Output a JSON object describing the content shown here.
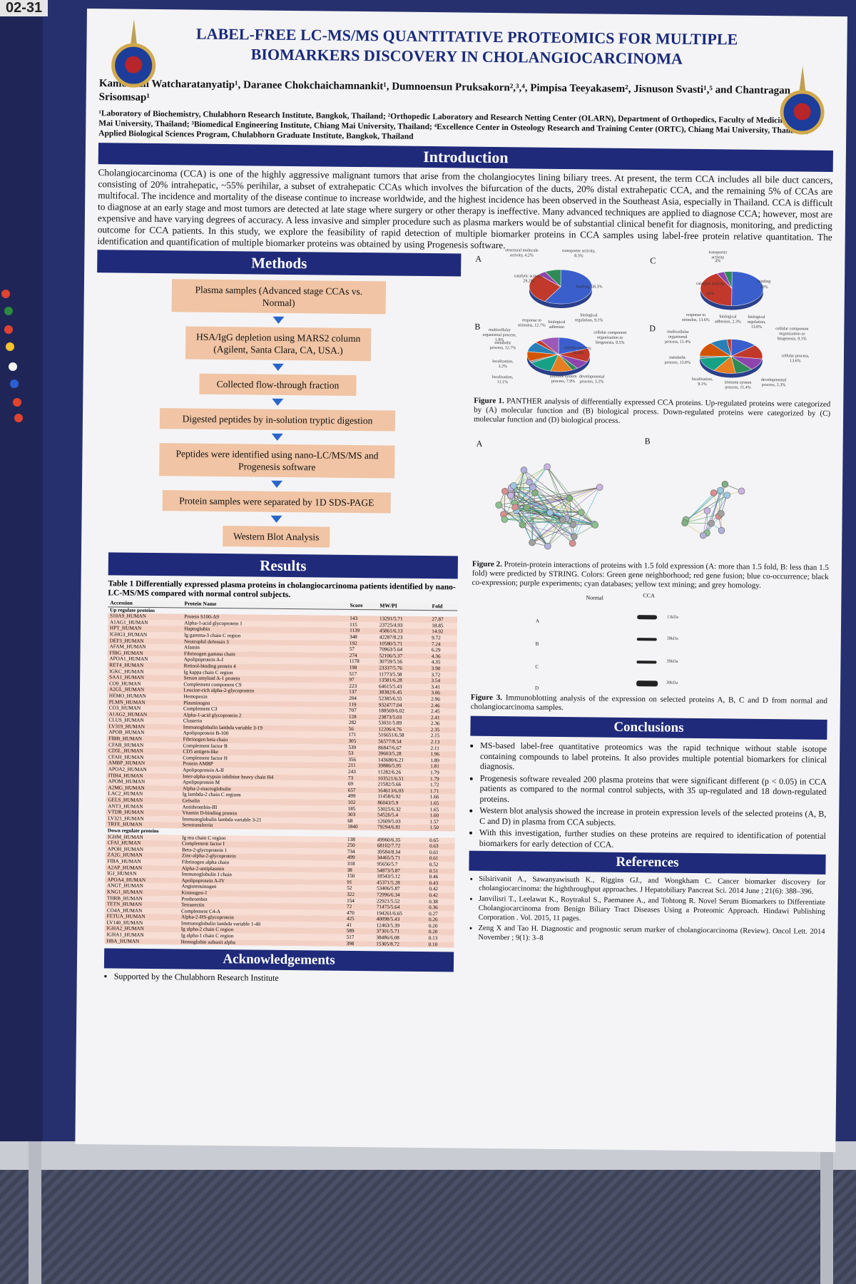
{
  "scene": {
    "board_tag": "02-31",
    "colors": {
      "board": "#27306e",
      "banner": "#1f2a7a",
      "flow_box": "#f0c4a4",
      "arrow": "#2a66c9",
      "table_row": "#f3d0c4"
    }
  },
  "poster": {
    "title": "LABEL-FREE LC-MS/MS QUANTITATIVE PROTEOMICS FOR MULTIPLE BIOMARKERS DISCOVERY IN CHOLANGIOCARCINOMA",
    "authors": "Kamolwan Watcharatanyatip¹, Daranee Chokchaichamnankit¹, Dumnoensun Pruksakorn²,³,⁴, Pimpisa Teeyakasem², Jisnuson Svasti¹,⁵ and Chantragan Srisomsap¹",
    "affiliations": "¹Laboratory of Biochemistry, Chulabhorn Research Institute, Bangkok, Thailand; ²Orthopedic Laboratory and Research Netting Center (OLARN), Department of Orthopedics, Faculty of Medicine, Chiang Mai University, Thailand; ³Biomedical Engineering Institute, Chiang Mai University, Thailand; ⁴Excellence Center in Osteology Research and Training Center (ORTC), Chiang Mai University, Thailand⁵; Applied Biological Sciences Program, Chulabhorn Graduate Institute, Bangkok, Thailand",
    "introduction": {
      "heading": "Introduction",
      "text": "Cholangiocarcinoma (CCA) is one of the highly aggressive malignant tumors that arise from the cholangiocytes lining biliary trees. At present, the term CCA includes all bile duct cancers, consisting of 20% intrahepatic, ~55% perihilar, a subset of extrahepatic CCAs which involves the bifurcation of the ducts, 20% distal extrahepatic CCA, and the remaining 5% of CCAs are multifocal. The incidence and mortality of the disease continue to increase worldwide, and the highest incidence has been observed in the Southeast Asia, especially in Thailand. CCA is difficult to diagnose at an early stage and most tumors are detected at late stage where surgery or other therapy is ineffective. Many advanced techniques are applied to diagnose CCA; however, most are expensive and have varying degrees of accuracy. A less invasive and simpler procedure such as plasma markers would be of substantial clinical benefit for diagnosis, monitoring, and predicting outcome for CCA patients. In this study, we explore the feasibility of rapid detection of multiple biomarker proteins in CCA samples using label-free protein relative quantitation. The identification and quantification of multiple biomarker proteins was obtained by using Progenesis software."
    },
    "methods": {
      "heading": "Methods",
      "steps": [
        "Plasma samples (Advanced stage CCAs vs. Normal)",
        "HSA/IgG depletion using MARS2 column (Agilent, Santa Clara, CA, USA.)",
        "Collected flow-through fraction",
        "Digested peptides by in-solution tryptic digestion",
        "Peptides were identified using nano-LC/MS/MS and Progenesis software",
        "Protein samples were separated by 1D SDS-PAGE",
        "Western Blot Analysis"
      ]
    },
    "results": {
      "heading": "Results",
      "table_caption": "Table 1  Differentially expressed plasma proteins in cholangiocarcinoma patients identified by nano-LC-MS/MS compared with normal control subjects.",
      "columns": [
        "Accession",
        "Protein Name",
        "Score",
        "MW/PI",
        "Fold"
      ],
      "up_label": "Up regulate proteins",
      "down_label": "Down regulate proteins",
      "up_rows": [
        [
          "S10A9_HUMAN",
          "Protein S100-A9",
          "143",
          "13291/5.71",
          "27.87"
        ],
        [
          "A1AG1_HUMAN",
          "Alpha-1-acid glycoprotein 1",
          "115",
          "23725/4.93",
          "18.85"
        ],
        [
          "HPT_HUMAN",
          "Haptoglobin",
          "1139",
          "45861/6.13",
          "14.92"
        ],
        [
          "IGHG3_HUMAN",
          "Ig gamma-3 chain C region",
          "348",
          "42287/8.23",
          "9.72"
        ],
        [
          "DEF3_HUMAN",
          "Neutrophil defensin 3",
          "192",
          "10580/5.71",
          "7.24"
        ],
        [
          "AFAM_HUMAN",
          "Afamin",
          "57",
          "70963/5.64",
          "6.29"
        ],
        [
          "FIBG_HUMAN",
          "Fibrinogen gamma chain",
          "274",
          "52106/5.37",
          "4.36"
        ],
        [
          "APOA1_HUMAN",
          "Apolipoprotein A-I",
          "1178",
          "30759/5.56",
          "4.35"
        ],
        [
          "RET4_HUMAN",
          "Retinol-binding protein 4",
          "198",
          "23337/5.76",
          "3.90"
        ],
        [
          "IGKC_HUMAN",
          "Ig kappa chain C region",
          "517",
          "11773/5.58",
          "3.72"
        ],
        [
          "SAA1_HUMAN",
          "Serum amyloid A-1 protein",
          "97",
          "13581/6.28",
          "3.54"
        ],
        [
          "CO9_HUMAN",
          "Complement component C9",
          "223",
          "64615/5.43",
          "3.41"
        ],
        [
          "A2GL_HUMAN",
          "Leucine-rich alpha-2-glycoprotein",
          "137",
          "38382/6.45",
          "3.06"
        ],
        [
          "HEMO_HUMAN",
          "Hemopexin",
          "204",
          "52385/6.55",
          "2.96"
        ],
        [
          "PLMN_HUMAN",
          "Plasminogen",
          "119",
          "93247/7.04",
          "2.46"
        ],
        [
          "CO3_HUMAN",
          "Complement C3",
          "707",
          "188569/6.02",
          "2.45"
        ],
        [
          "A1AG2_HUMAN",
          "Alpha-1-acid glycoprotein 2",
          "128",
          "23873/5.03",
          "2.41"
        ],
        [
          "CLUS_HUMAN",
          "Clusterin",
          "282",
          "53031/5.89",
          "2.36"
        ],
        [
          "LV319_HUMAN",
          "Immunoglobulin lambda variable 3-19",
          "56",
          "12206/4.76",
          "2.35"
        ],
        [
          "APOB_HUMAN",
          "Apolipoprotein B-100",
          "171",
          "516651/6.58",
          "2.15"
        ],
        [
          "FIBB_HUMAN",
          "Fibrinogen beta chain",
          "305",
          "56577/8.54",
          "2.13"
        ],
        [
          "CFAB_HUMAN",
          "Complement factor B",
          "539",
          "86847/6.67",
          "2.11"
        ],
        [
          "CD5L_HUMAN",
          "CD5 antigen-like",
          "53",
          "39603/5.28",
          "1.96"
        ],
        [
          "CFAH_HUMAN",
          "Complement factor H",
          "356",
          "143680/6.21",
          "1.89"
        ],
        [
          "AMBP_HUMAN",
          "Protein AMBP",
          "211",
          "39886/5.95",
          "1.81"
        ],
        [
          "APOA2_HUMAN",
          "Apolipoprotein A-II",
          "243",
          "11282/6.26",
          "1.79"
        ],
        [
          "ITIH4_HUMAN",
          "Inter-alpha-trypsin inhibitor heavy chain H4",
          "73",
          "103521/6.51",
          "1.79"
        ],
        [
          "APOM_HUMAN",
          "Apolipoprotein M",
          "69",
          "21582/5.66",
          "1.72"
        ],
        [
          "A2MG_HUMAN",
          "Alpha-2-macroglobulin",
          "657",
          "164613/6.03",
          "1.71"
        ],
        [
          "LAC2_HUMAN",
          "Ig lambda-2 chain C regions",
          "499",
          "11458/6.92",
          "1.66"
        ],
        [
          "GELS_HUMAN",
          "Gelsolin",
          "102",
          "86043/5.9",
          "1.65"
        ],
        [
          "ANT3_HUMAN",
          "Antithrombin-III",
          "185",
          "53025/6.32",
          "1.65"
        ],
        [
          "VTDB_HUMAN",
          "Vitamin D-binding protein",
          "303",
          "54526/5.4",
          "1.60"
        ],
        [
          "LV321_HUMAN",
          "Immunoglobulin lambda variable 3-21",
          "68",
          "12609/5.03",
          "1.57"
        ],
        [
          "TRFE_HUMAN",
          "Serotransferrin",
          "1840",
          "79294/6.81",
          "1.50"
        ]
      ],
      "down_rows": [
        [
          "IGHM_HUMAN",
          "Ig mu chain C region",
          "138",
          "49960/6.35",
          "0.65"
        ],
        [
          "CFAI_HUMAN",
          "Complement factor I",
          "250",
          "68102/7.72",
          "0.63"
        ],
        [
          "APOH_HUMAN",
          "Beta-2-glycoprotein 1",
          "734",
          "39584/8.34",
          "0.61"
        ],
        [
          "ZA2G_HUMAN",
          "Zinc-alpha-2-glycoprotein",
          "499",
          "34465/5.71",
          "0.61"
        ],
        [
          "FIBA_HUMAN",
          "Fibrinogen alpha chain",
          "318",
          "95656/5.7",
          "0.52"
        ],
        [
          "A2AP_HUMAN",
          "Alpha-2-antiplasmin",
          "38",
          "54873/5.87",
          "0.51"
        ],
        [
          "IGJ_HUMAN",
          "Immunoglobulin J chain",
          "150",
          "18543/5.12",
          "0.46"
        ],
        [
          "APOA4_HUMAN",
          "Apolipoprotein A-IV",
          "91",
          "45371/5.28",
          "0.43"
        ],
        [
          "ANGT_HUMAN",
          "Angiotensinogen",
          "52",
          "53406/5.87",
          "0.42"
        ],
        [
          "KNG1_HUMAN",
          "Kininogen-1",
          "322",
          "72996/6.34",
          "0.42"
        ],
        [
          "THRB_HUMAN",
          "Prothrombin",
          "154",
          "22921/5.52",
          "0.38"
        ],
        [
          "TETN_HUMAN",
          "Tetranectin",
          "72",
          "71475/5.64",
          "0.36"
        ],
        [
          "CO4A_HUMAN",
          "Complement C4-A",
          "470",
          "194261/6.65",
          "0.27"
        ],
        [
          "FETUA_HUMAN",
          "Alpha-2-HS-glycoprotein",
          "425",
          "40098/5.43",
          "0.26"
        ],
        [
          "LV140_HUMAN",
          "Immunoglobulin lambda variable 1-40",
          "41",
          "12463/5.39",
          "0.20"
        ],
        [
          "IGHA2_HUMAN",
          "Ig alpha-2 chain C region",
          "589",
          "37301/5.71",
          "0.20"
        ],
        [
          "IGHA1_HUMAN",
          "Ig alpha-1 chain C region",
          "517",
          "38486/6.08",
          "0.13"
        ],
        [
          "HBA_HUMAN",
          "Hemoglobin subunit alpha",
          "398",
          "15305/8.72",
          "0.10"
        ]
      ]
    },
    "acknowledgements": {
      "heading": "Acknowledgements",
      "text": "Supported by the Chulabhorn Research Institute"
    },
    "figure1": {
      "panel_a": "A",
      "panel_b": "B",
      "panel_c": "C",
      "panel_d": "D",
      "caption_title": "Figure 1.",
      "caption": "PANTHER analysis of differentially expressed CCA proteins. Up-regulated proteins were categorized by (A) molecular function and (B) biological process. Down-regulated proteins were categorized by (C) molecular function and (D) biological process.",
      "labels_a": [
        "structural molecule activity, 4.2%",
        "transporter activity, 8.3%",
        "catalytic activity, 29.2%",
        "binding, 58.3%"
      ],
      "labels_b": [
        "response to stimulus, 12.7%",
        "biological adhesion",
        "biological regulation, 9.1%",
        "multicellular organismal process, 1.8%",
        "cellular component organization or biogenesis, 9.5%",
        "metabolic process, 12.7%",
        "localization, 3.2%",
        "immune system process, 7.9%",
        "developmental process, 3.2%",
        "localization, 11.1%",
        "cellular process, 19.0%"
      ],
      "labels_c": [
        "transporter activity",
        "4%",
        "binding",
        "50%",
        "catalytic activity",
        "42%"
      ],
      "labels_d": [
        "response to stimulus, 13.6%",
        "biological adhesion, 2.3%",
        "biological regulation, 13.6%",
        "multicellular organismal process, 11.4%",
        "cellular component organization or biogenesis, 9.1%",
        "metabolic process, 13.6%",
        "cellular process, 13.6%",
        "localization, 9.1%",
        "immune system process, 11.4%",
        "developmental process, 2.3%"
      ]
    },
    "figure2": {
      "panel_a": "A",
      "panel_b": "B",
      "caption_title": "Figure 2.",
      "caption": "Protein-protein interactions of proteins with 1.5 fold expression (A: more than 1.5 fold, B: less than 1.5 fold) were predicted by STRING. Colors: Green gene neighborhood; red gene fusion; blue co-occurrence; black co-expression; purple experiments; cyan databases; yellow text mining; and grey homology."
    },
    "figure3": {
      "col_normal": "Normal",
      "col_cca": "CCA",
      "rows": [
        "A",
        "B",
        "C",
        "D"
      ],
      "mw_labels": [
        "13kDa",
        "39kDa",
        "39kDa",
        "39kDa"
      ],
      "caption_title": "Figure 3.",
      "caption": "Immunoblotting analysis of the expression on selected proteins A, B, C and D from normal and cholangiocarcinoma samples."
    },
    "conclusions": {
      "heading": "Conclusions",
      "items": [
        "MS-based label-free quantitative proteomics was the rapid technique without stable isotope containing compounds to label proteins. It also provides multiple potential biomarkers for clinical diagnosis.",
        "Progenesis software revealed 200 plasma proteins that were significant different (p < 0.05) in CCA patients as compared to the normal control subjects, with 35 up-regulated and 18 down-regulated proteins.",
        "Western blot analysis showed the increase in protein expression levels of the selected proteins (A, B, C and D) in plasma from CCA subjects.",
        "With this investigation, further studies on these proteins are required to identification of potential biomarkers for early detection of CCA."
      ]
    },
    "references": {
      "heading": "References",
      "items": [
        "Silsirivanit A., Sawanyawisuth K., Riggins GJ., and Wongkham C. Cancer biomarker discovery for cholangiocarcinoma: the highthroughput approaches. J Hepatobiliary Pancreat Sci. 2014 June ; 21(6): 388–396.",
        "Janvilisri T., Leelawat K., Roytrakul S., Paemanee A., and Tohtong R. Novel Serum Biomarkers to Differentiate Cholangiocarcinoma from Benign Biliary Tract Diseases Using a Proteomic Approach. Hindawi Publishing Corporation . Vol. 2015, 11 pages.",
        "Zeng X and Tao H. Diagnostic and prognostic serum marker of cholangiocarcinoma (Review). Oncol Lett. 2014 November ; 9(1): 3–8"
      ]
    }
  }
}
